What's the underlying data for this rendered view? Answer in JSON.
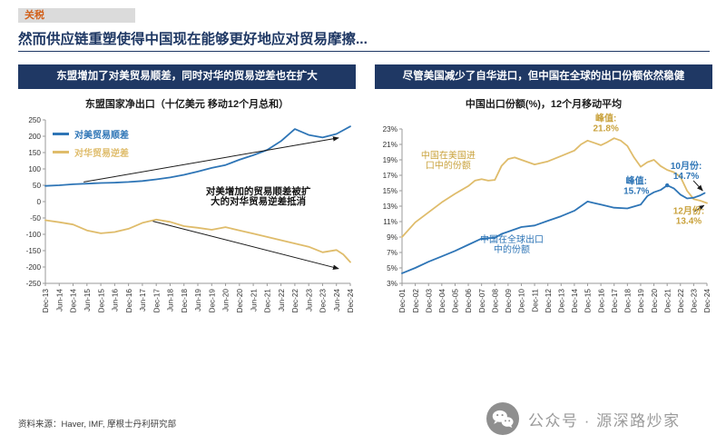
{
  "page": {
    "tag": "关税",
    "title": "然而供应链重塑使得中国现在能够更好地应对贸易摩擦...",
    "source": "资料来源：Haver, IMF, 摩根士丹利研究部",
    "watermark": "公众号 · 源深路炒家"
  },
  "colors": {
    "navy": "#1F3864",
    "blue": "#2E75B6",
    "gold": "#DFBC6B",
    "gold_text": "#C9A23C",
    "tag": "#D2601A",
    "tag_bg": "#DBDBDB",
    "watermark_gray": "#9a9a9a"
  },
  "left_panel": {
    "header": "东盟增加了对美贸易顺差，同时对华的贸易逆差也在扩大",
    "chart_title": "东盟国家净出口（十亿美元 移动12个月总和）",
    "legend": [
      {
        "label": "对美贸易顺差",
        "color": "#2E75B6"
      },
      {
        "label": "对华贸易逆差",
        "color": "#DFBC6B"
      }
    ]
  },
  "right_panel": {
    "header": "尽管美国减少了自华进口，但中国在全球的出口份额依然稳健",
    "chart_title": "中国出口份额(%)，12个月移动平均"
  },
  "chart_data": [
    {
      "type": "line",
      "title": "东盟国家净出口（十亿美元 移动12个月总和）",
      "xlim": [
        2013.92,
        2024.92
      ],
      "ylim": [
        -250,
        250
      ],
      "grid": false,
      "legend_position": "top-left",
      "x_ticks": [
        "Dec-13",
        "Jun-14",
        "Dec-14",
        "Jun-15",
        "Dec-15",
        "Jun-16",
        "Dec-16",
        "Jun-17",
        "Dec-17",
        "Jun-18",
        "Dec-18",
        "Jun-19",
        "Dec-19",
        "Jun-20",
        "Dec-20",
        "Jun-21",
        "Dec-21",
        "Jun-22",
        "Dec-22",
        "Jun-23",
        "Dec-23",
        "Jun-24",
        "Dec-24"
      ],
      "y_ticks": [
        "250",
        "200",
        "150",
        "100",
        "50",
        "0",
        "-50",
        "-100",
        "-150",
        "-200",
        "-250"
      ],
      "series": [
        {
          "name": "对美贸易顺差",
          "color": "#2E75B6",
          "points": [
            [
              2013.92,
              48
            ],
            [
              2014.42,
              50
            ],
            [
              2014.92,
              53
            ],
            [
              2015.42,
              55
            ],
            [
              2015.92,
              57
            ],
            [
              2016.42,
              58
            ],
            [
              2016.92,
              60
            ],
            [
              2017.42,
              63
            ],
            [
              2017.92,
              68
            ],
            [
              2018.42,
              74
            ],
            [
              2018.92,
              82
            ],
            [
              2019.42,
              92
            ],
            [
              2019.92,
              103
            ],
            [
              2020.42,
              112
            ],
            [
              2020.92,
              128
            ],
            [
              2021.42,
              142
            ],
            [
              2021.92,
              158
            ],
            [
              2022.42,
              185
            ],
            [
              2022.92,
              222
            ],
            [
              2023.42,
              204
            ],
            [
              2023.92,
              196
            ],
            [
              2024.42,
              207
            ],
            [
              2024.92,
              230
            ]
          ]
        },
        {
          "name": "对华贸易逆差",
          "color": "#DFBC6B",
          "points": [
            [
              2013.92,
              -57
            ],
            [
              2014.42,
              -63
            ],
            [
              2014.92,
              -70
            ],
            [
              2015.42,
              -88
            ],
            [
              2015.92,
              -97
            ],
            [
              2016.42,
              -93
            ],
            [
              2016.92,
              -83
            ],
            [
              2017.42,
              -65
            ],
            [
              2017.92,
              -55
            ],
            [
              2018.42,
              -62
            ],
            [
              2018.92,
              -75
            ],
            [
              2019.42,
              -80
            ],
            [
              2019.92,
              -86
            ],
            [
              2020.42,
              -78
            ],
            [
              2020.92,
              -88
            ],
            [
              2021.42,
              -98
            ],
            [
              2021.92,
              -108
            ],
            [
              2022.42,
              -118
            ],
            [
              2022.92,
              -128
            ],
            [
              2023.42,
              -138
            ],
            [
              2023.92,
              -155
            ],
            [
              2024.42,
              -148
            ],
            [
              2024.67,
              -162
            ],
            [
              2024.92,
              -185
            ]
          ]
        }
      ],
      "annotations": [
        {
          "x": 2021.6,
          "y": 22,
          "lines": [
            "对美增加的贸易顺差被扩",
            "大的对华贸易逆差抵消"
          ],
          "color": "#111111",
          "bold": true,
          "size": 10.5
        }
      ],
      "arrows": [
        {
          "from": [
            2015.3,
            60
          ],
          "to": [
            2024.5,
            195
          ]
        },
        {
          "from": [
            2017.8,
            -60
          ],
          "to": [
            2024.5,
            -205
          ]
        }
      ]
    },
    {
      "type": "line",
      "title": "中国出口份额(%)，12个月移动平均",
      "xlim": [
        2001.92,
        2024.92
      ],
      "ylim": [
        3,
        23
      ],
      "grid": false,
      "x_ticks": [
        "Dec-01",
        "Dec-02",
        "Dec-03",
        "Dec-04",
        "Dec-05",
        "Dec-06",
        "Dec-07",
        "Dec-08",
        "Dec-09",
        "Dec-10",
        "Dec-11",
        "Dec-12",
        "Dec-13",
        "Dec-14",
        "Dec-15",
        "Dec-16",
        "Dec-17",
        "Dec-18",
        "Dec-19",
        "Dec-20",
        "Dec-21",
        "Dec-22",
        "Dec-23",
        "Dec-24"
      ],
      "y_ticks": [
        "23%",
        "21%",
        "19%",
        "17%",
        "15%",
        "13%",
        "11%",
        "9%",
        "7%",
        "5%",
        "3%"
      ],
      "series": [
        {
          "name": "中国在美国进口中的份额",
          "color": "#DFBC6B",
          "points": [
            [
              2001.92,
              9.0
            ],
            [
              2002.92,
              10.9
            ],
            [
              2003.92,
              12.2
            ],
            [
              2004.92,
              13.5
            ],
            [
              2005.92,
              14.6
            ],
            [
              2006.92,
              15.6
            ],
            [
              2007.42,
              16.3
            ],
            [
              2007.92,
              16.5
            ],
            [
              2008.42,
              16.3
            ],
            [
              2008.92,
              16.4
            ],
            [
              2009.42,
              18.2
            ],
            [
              2009.92,
              19.1
            ],
            [
              2010.42,
              19.3
            ],
            [
              2010.92,
              19.0
            ],
            [
              2011.92,
              18.4
            ],
            [
              2012.92,
              18.8
            ],
            [
              2013.92,
              19.5
            ],
            [
              2014.92,
              20.2
            ],
            [
              2015.42,
              21.0
            ],
            [
              2015.92,
              21.5
            ],
            [
              2016.42,
              21.2
            ],
            [
              2016.92,
              20.9
            ],
            [
              2017.42,
              21.3
            ],
            [
              2017.92,
              21.8
            ],
            [
              2018.42,
              21.5
            ],
            [
              2018.92,
              20.8
            ],
            [
              2019.42,
              19.3
            ],
            [
              2019.92,
              18.1
            ],
            [
              2020.42,
              18.7
            ],
            [
              2020.92,
              19.0
            ],
            [
              2021.42,
              18.2
            ],
            [
              2021.92,
              17.7
            ],
            [
              2022.42,
              17.4
            ],
            [
              2022.92,
              16.8
            ],
            [
              2023.42,
              15.0
            ],
            [
              2023.92,
              13.9
            ],
            [
              2024.42,
              13.7
            ],
            [
              2024.92,
              13.4
            ]
          ]
        },
        {
          "name": "中国在全球出口中的份额",
          "color": "#2E75B6",
          "points": [
            [
              2001.92,
              4.3
            ],
            [
              2002.92,
              5.0
            ],
            [
              2003.92,
              5.8
            ],
            [
              2004.92,
              6.5
            ],
            [
              2005.92,
              7.2
            ],
            [
              2006.92,
              8.0
            ],
            [
              2007.92,
              8.8
            ],
            [
              2008.92,
              8.9
            ],
            [
              2009.42,
              9.4
            ],
            [
              2009.92,
              9.7
            ],
            [
              2010.92,
              10.3
            ],
            [
              2011.92,
              10.5
            ],
            [
              2012.92,
              11.1
            ],
            [
              2013.92,
              11.7
            ],
            [
              2014.92,
              12.4
            ],
            [
              2015.42,
              13.0
            ],
            [
              2015.92,
              13.6
            ],
            [
              2016.42,
              13.4
            ],
            [
              2016.92,
              13.2
            ],
            [
              2017.92,
              12.8
            ],
            [
              2018.92,
              12.7
            ],
            [
              2019.92,
              13.2
            ],
            [
              2020.42,
              14.3
            ],
            [
              2020.92,
              14.8
            ],
            [
              2021.42,
              15.1
            ],
            [
              2021.92,
              15.7
            ],
            [
              2022.42,
              15.3
            ],
            [
              2022.92,
              14.5
            ],
            [
              2023.42,
              14.0
            ],
            [
              2023.92,
              14.1
            ],
            [
              2024.42,
              14.4
            ],
            [
              2024.75,
              14.7
            ]
          ]
        }
      ],
      "markers": [
        {
          "x": 2021.92,
          "y": 15.7,
          "color": "#2E75B6"
        }
      ],
      "annotations": [
        {
          "x": 2005.4,
          "y": 19.2,
          "lines": [
            "中国在美国进",
            "口中的份额"
          ],
          "color": "#C9A23C",
          "bold": false,
          "size": 10
        },
        {
          "x": 2010.2,
          "y": 8.3,
          "lines": [
            "中国在全球出口",
            "中的份额"
          ],
          "color": "#2E75B6",
          "bold": false,
          "size": 10
        },
        {
          "x": 2017.3,
          "y": 24.0,
          "lines": [
            "峰值:",
            "21.8%"
          ],
          "color": "#C9A23C",
          "bold": true,
          "size": 10
        },
        {
          "x": 2019.6,
          "y": 15.9,
          "lines": [
            "峰值:",
            "15.7%"
          ],
          "color": "#2E75B6",
          "bold": true,
          "size": 10
        },
        {
          "x": 2023.35,
          "y": 17.8,
          "lines": [
            "10月份:",
            "14.7%"
          ],
          "color": "#2E75B6",
          "bold": true,
          "size": 10
        },
        {
          "x": 2023.55,
          "y": 12.0,
          "lines": [
            "12月份:",
            "13.4%"
          ],
          "color": "#C9A23C",
          "bold": true,
          "size": 10
        }
      ],
      "arrows": [
        {
          "from": [
            2023.9,
            16.3
          ],
          "to": [
            2024.6,
            15.0
          ]
        },
        {
          "from": [
            2024.0,
            12.35
          ],
          "to": [
            2024.7,
            13.1
          ]
        }
      ]
    }
  ]
}
